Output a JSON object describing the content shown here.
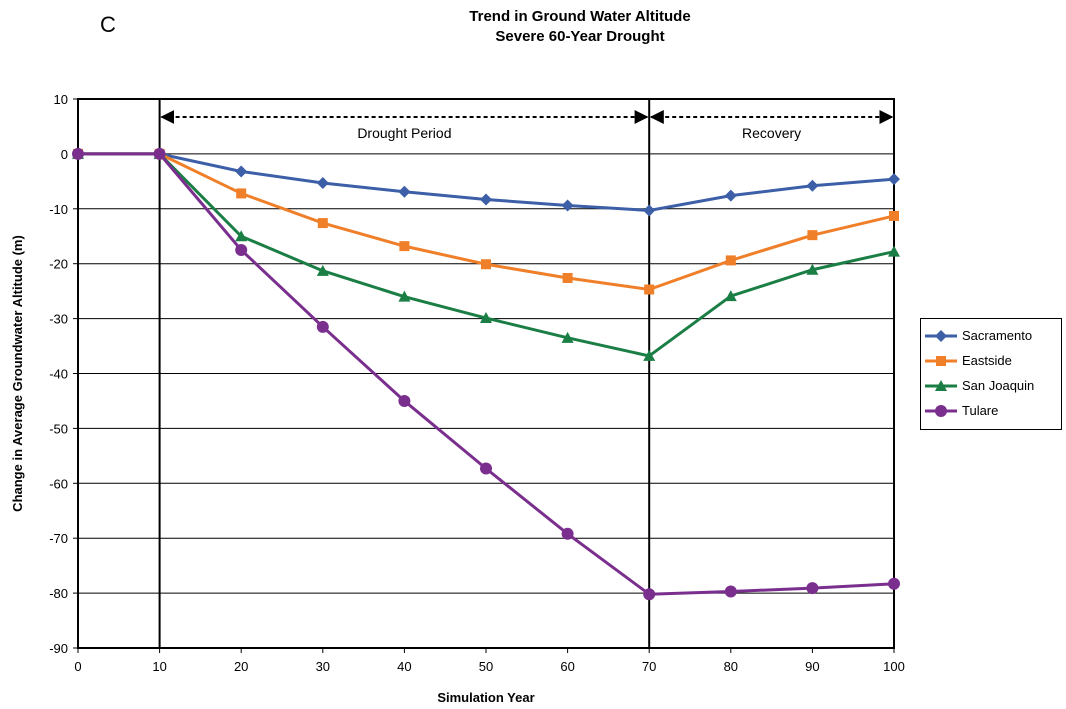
{
  "panel_letter": "C",
  "chart_data": {
    "type": "line",
    "title": "Trend in Ground Water Altitude",
    "subtitle": "Severe 60-Year Drought",
    "xlabel": "Simulation Year",
    "ylabel": "Change in Average Groundwater Altitude (m)",
    "xlim": [
      0,
      100
    ],
    "ylim": [
      -90,
      10
    ],
    "x_ticks": [
      0,
      10,
      20,
      30,
      40,
      50,
      60,
      70,
      80,
      90,
      100
    ],
    "y_ticks": [
      10,
      0,
      -10,
      -20,
      -30,
      -40,
      -50,
      -60,
      -70,
      -80,
      -90
    ],
    "grid": "horizontal",
    "legend_position": "right",
    "x": [
      0,
      10,
      20,
      30,
      40,
      50,
      60,
      70,
      80,
      90,
      100
    ],
    "series": [
      {
        "name": "Sacramento",
        "color": "#3c5fa8",
        "marker": "diamond",
        "values": [
          0,
          0,
          -3.2,
          -5.3,
          -6.9,
          -8.3,
          -9.4,
          -10.3,
          -7.6,
          -5.8,
          -4.6
        ]
      },
      {
        "name": "Eastside",
        "color": "#f07f2a",
        "marker": "square",
        "values": [
          0,
          0,
          -7.2,
          -12.6,
          -16.8,
          -20.1,
          -22.6,
          -24.7,
          -19.4,
          -14.8,
          -11.3
        ]
      },
      {
        "name": "San Joaquin",
        "color": "#1a7e45",
        "marker": "triangle",
        "values": [
          0,
          0,
          -15,
          -21.3,
          -26,
          -29.9,
          -33.5,
          -36.8,
          -25.9,
          -21.1,
          -17.8
        ]
      },
      {
        "name": "Tulare",
        "color": "#7a2f8e",
        "marker": "circle",
        "values": [
          0,
          0,
          -17.5,
          -31.5,
          -45,
          -57.3,
          -69.2,
          -80.2,
          -79.7,
          -79.1,
          -78.3
        ]
      }
    ],
    "annotations": {
      "drought_label": "Drought Period",
      "drought_range": [
        10,
        70
      ],
      "recovery_label": "Recovery",
      "recovery_range": [
        70,
        100
      ]
    }
  }
}
